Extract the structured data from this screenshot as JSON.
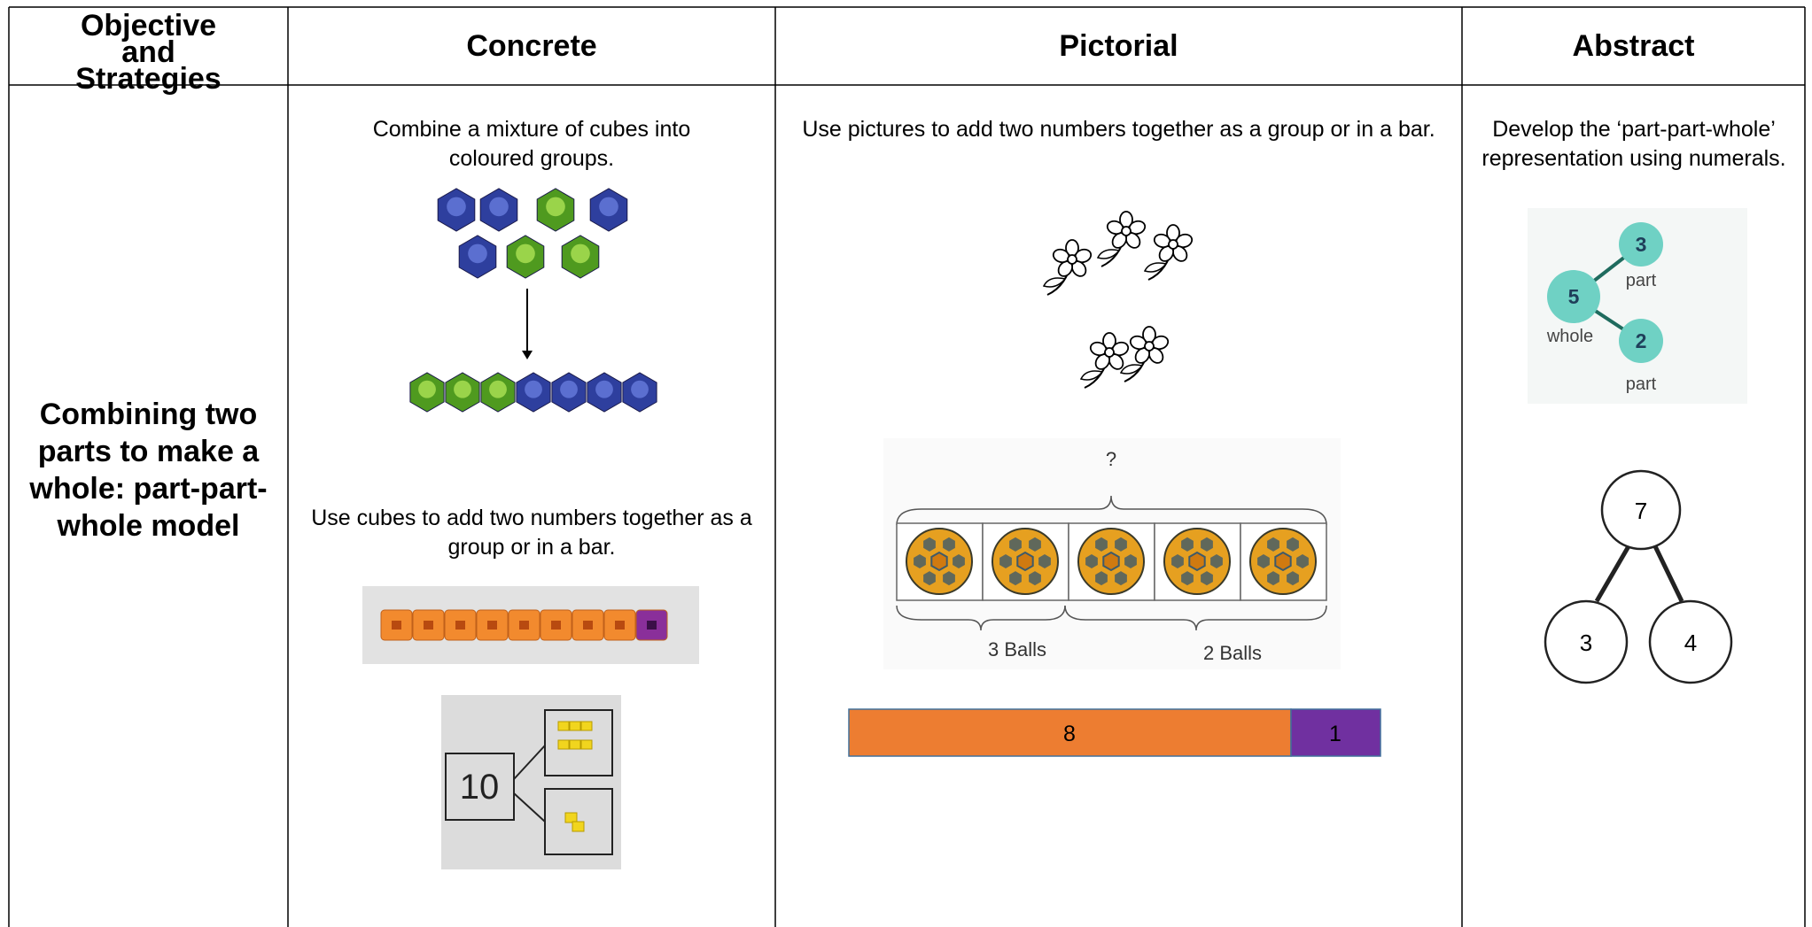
{
  "header": {
    "columns": [
      "Objective and Strategies",
      "Concrete",
      "Pictorial",
      "Abstract"
    ]
  },
  "row": {
    "objective": "Combining two parts to make a whole: part-part-whole model",
    "concrete": {
      "text_1": "Combine a mixture of cubes into coloured groups.",
      "text_2": "Use cubes to add two numbers together as a group or in a bar.",
      "box_label": "10"
    },
    "pictorial": {
      "text": "Use pictures to add two numbers together as a group or in a bar.",
      "question": "?",
      "left_label": "3 Balls",
      "right_label": "2 Balls",
      "bar_left": "8",
      "bar_right": "1"
    },
    "abstract": {
      "text": "Develop the ‘part-part-whole’ representation using numerals.",
      "model_1": {
        "part_top": "3",
        "part_top_label": "part",
        "whole": "5",
        "whole_label": "whole",
        "part_bottom": "2",
        "part_bottom_label": "part"
      },
      "model_2": {
        "whole": "7",
        "left": "3",
        "right": "4"
      }
    }
  }
}
